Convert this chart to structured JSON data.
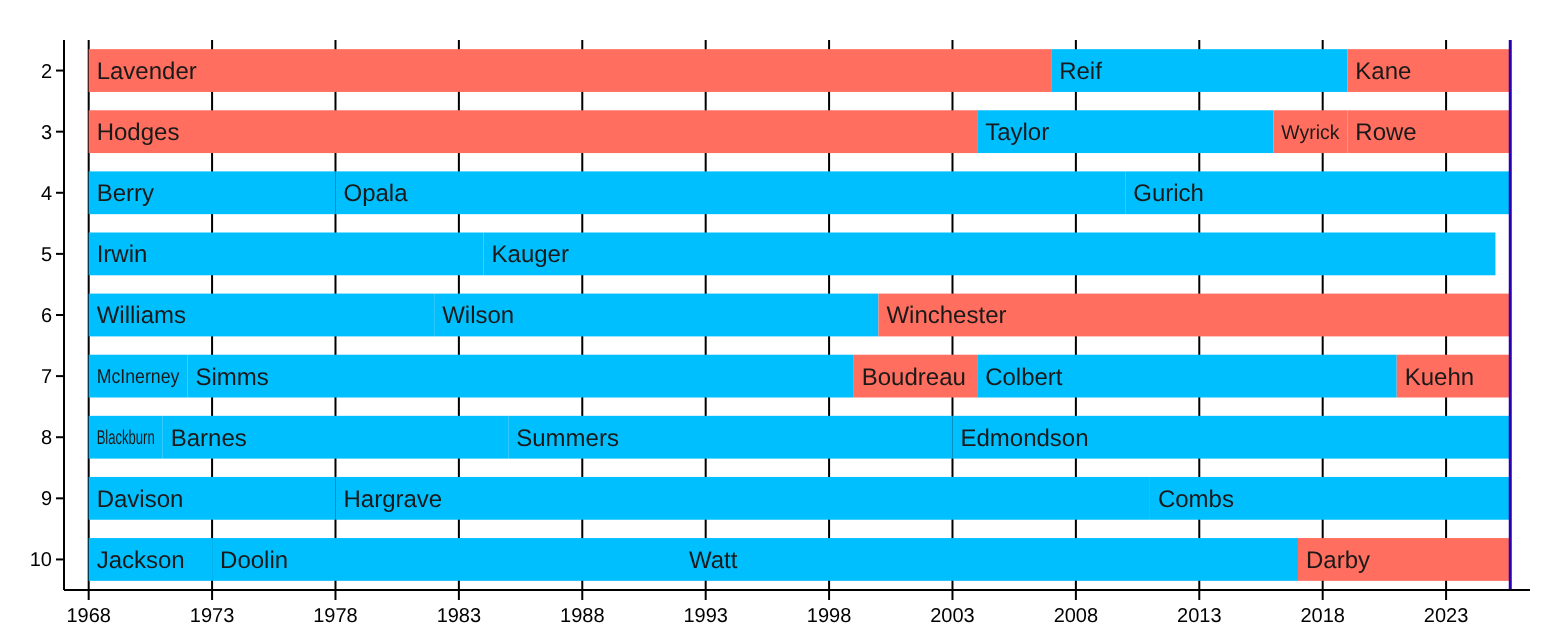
{
  "chart_data": {
    "type": "bar",
    "orientation": "horizontal",
    "categories": [
      "2",
      "3",
      "4",
      "5",
      "6",
      "7",
      "8",
      "9",
      "10"
    ],
    "series": [
      {
        "base": [
          1968,
          1968,
          1968,
          1968,
          1968,
          1968,
          1968,
          1968,
          1968
        ],
        "values": [
          39,
          36,
          10,
          16,
          14,
          4,
          3,
          10,
          5
        ],
        "colors": [
          "#ff6e5e",
          "#ff6e5e",
          "#00bfff",
          "#00bfff",
          "#00bfff",
          "#00bfff",
          "#00bfff",
          "#00bfff",
          "#00bfff"
        ]
      },
      {
        "base": [
          2007,
          2004,
          1978,
          1984,
          1982,
          1972,
          1971,
          1978,
          1973
        ],
        "values": [
          12,
          12,
          32,
          41,
          18,
          27,
          14,
          33,
          19
        ],
        "colors": [
          "#00bfff",
          "#00bfff",
          "#00bfff",
          "#00bfff",
          "#00bfff",
          "#00bfff",
          "#00bfff",
          "#00bfff",
          "#00bfff"
        ]
      },
      {
        "base": [
          2019,
          2016,
          2010,
          null,
          2000,
          1999,
          1985,
          2011,
          1992
        ],
        "values": [
          6.6,
          3,
          15.6,
          null,
          25.6,
          5,
          18,
          14.6,
          25
        ],
        "colors": [
          "#ff6e5e",
          "#ff6e5e",
          "#00bfff",
          null,
          "#ff6e5e",
          "#ff6e5e",
          "#00bfff",
          "#00bfff",
          "#00bfff"
        ]
      },
      {
        "base": [
          null,
          2019,
          null,
          null,
          null,
          2004,
          2003,
          null,
          2017
        ],
        "values": [
          null,
          6.6,
          null,
          null,
          null,
          17,
          22.6,
          null,
          8.6
        ],
        "colors": [
          null,
          "#ff6e5e",
          null,
          null,
          null,
          "#00bfff",
          "#00bfff",
          null,
          "#ff6e5e"
        ]
      },
      {
        "base": [
          null,
          null,
          null,
          null,
          null,
          2021,
          null,
          null,
          null
        ],
        "values": [
          null,
          null,
          null,
          null,
          null,
          4.6,
          null,
          null,
          null
        ],
        "colors": [
          null,
          null,
          null,
          null,
          null,
          "#ff6e5e",
          null,
          null,
          null
        ]
      }
    ],
    "xlim": [
      1967,
      2026.4
    ],
    "xticks": [
      1968,
      1973,
      1978,
      1983,
      1988,
      1993,
      1998,
      2003,
      2008,
      2013,
      2018,
      2023
    ],
    "grid": "x",
    "ref_lines": [
      {
        "axis": "x",
        "value": 2025.6,
        "color": "#2a00b0"
      }
    ],
    "annotations": [
      {
        "text": "Lavender",
        "x": 1968,
        "y": "2"
      },
      {
        "text": "Reif",
        "x": 2007,
        "y": "2"
      },
      {
        "text": "Kane",
        "x": 2019,
        "y": "2"
      },
      {
        "text": "Hodges",
        "x": 1968,
        "y": "3"
      },
      {
        "text": "Taylor",
        "x": 2004,
        "y": "3"
      },
      {
        "text": "Wyrick",
        "x": 2016,
        "y": "3"
      },
      {
        "text": "Rowe",
        "x": 2019,
        "y": "3"
      },
      {
        "text": "Berry",
        "x": 1968,
        "y": "4"
      },
      {
        "text": "Opala",
        "x": 1978,
        "y": "4"
      },
      {
        "text": "Gurich",
        "x": 2010,
        "y": "4"
      },
      {
        "text": "Irwin",
        "x": 1968,
        "y": "5"
      },
      {
        "text": "Kauger",
        "x": 1984,
        "y": "5"
      },
      {
        "text": "Williams",
        "x": 1968,
        "y": "6"
      },
      {
        "text": "Wilson",
        "x": 1982,
        "y": "6"
      },
      {
        "text": "Winchester",
        "x": 2000,
        "y": "6"
      },
      {
        "text": "McInerney",
        "x": 1968,
        "y": "7"
      },
      {
        "text": "Simms",
        "x": 1972,
        "y": "7"
      },
      {
        "text": "Boudreau",
        "x": 1999,
        "y": "7"
      },
      {
        "text": "Colbert",
        "x": 2004,
        "y": "7"
      },
      {
        "text": "Kuehn",
        "x": 2021,
        "y": "7"
      },
      {
        "text": "Blackburn",
        "x": 1968,
        "y": "8"
      },
      {
        "text": "Barnes",
        "x": 1971,
        "y": "8"
      },
      {
        "text": "Summers",
        "x": 1985,
        "y": "8"
      },
      {
        "text": "Edmondson",
        "x": 2003,
        "y": "8"
      },
      {
        "text": "Davison",
        "x": 1968,
        "y": "9"
      },
      {
        "text": "Hargrave",
        "x": 1978,
        "y": "9"
      },
      {
        "text": "Combs",
        "x": 2011,
        "y": "9"
      },
      {
        "text": "Jackson",
        "x": 1968,
        "y": "10"
      },
      {
        "text": "Doolin",
        "x": 1973,
        "y": "10"
      },
      {
        "text": "Watt",
        "x": 1992,
        "y": "10"
      },
      {
        "text": "Darby",
        "x": 2017,
        "y": "10"
      }
    ]
  }
}
